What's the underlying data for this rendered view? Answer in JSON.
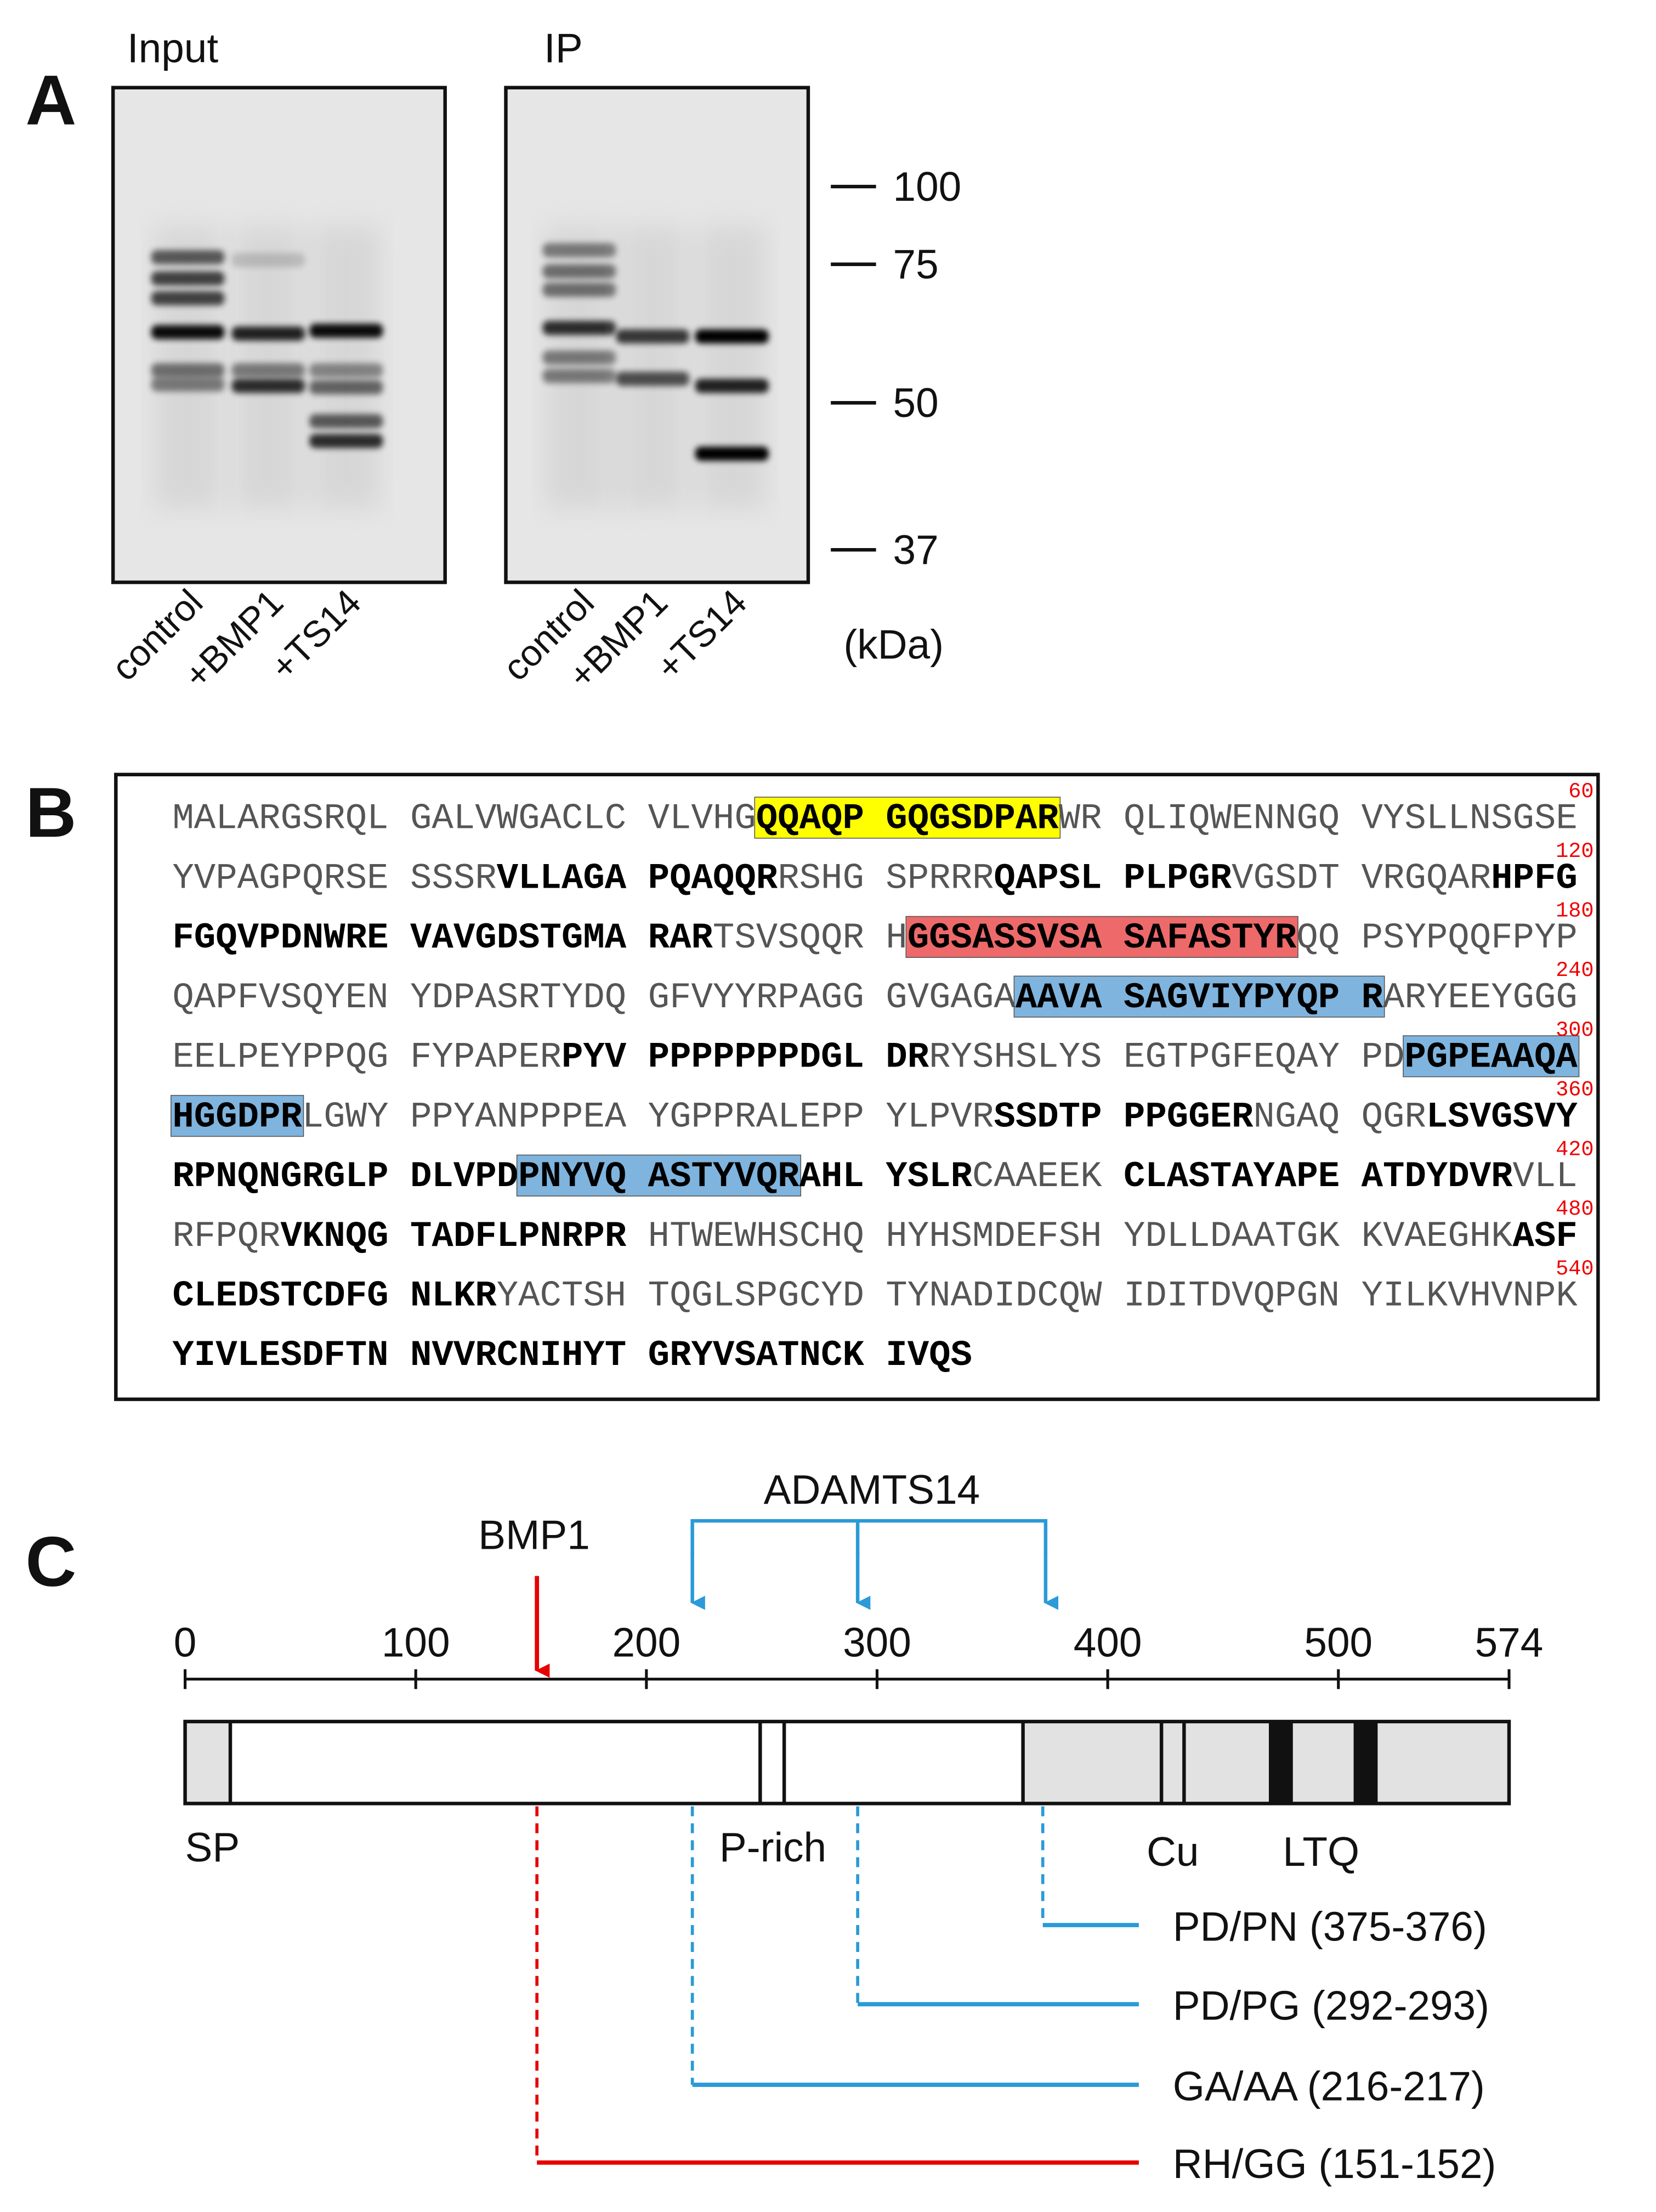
{
  "panel_a": {
    "label": "A",
    "titles": [
      "Input",
      "IP"
    ],
    "lanes": [
      "control",
      "+BMP1",
      "+TS14"
    ],
    "markers": [
      "100",
      "75",
      "50",
      "37"
    ],
    "unit": "(kDa)"
  },
  "panel_b": {
    "label": "B",
    "lines": [
      {
        "number": 60,
        "segments": [
          {
            "text": "MALARGSRQL GALVWGACLC VLVHG",
            "bold": false
          },
          {
            "text": "QQAQP GQGSDPAR",
            "bold": true,
            "highlight": "#ffff00"
          },
          {
            "text": "WR QLIQWENNGQ VYSLLNSGSE",
            "bold": false
          }
        ]
      },
      {
        "number": 120,
        "segments": [
          {
            "text": "YVPAGPQRSE SSSR",
            "bold": false
          },
          {
            "text": "VLLAGA PQAQQR",
            "bold": true
          },
          {
            "text": "RSHG SPRRR",
            "bold": false
          },
          {
            "text": "QAPSL PLPGR",
            "bold": true
          },
          {
            "text": "VGSDT VRGQAR",
            "bold": false
          },
          {
            "text": "HPFG",
            "bold": true
          }
        ]
      },
      {
        "number": 180,
        "segments": [
          {
            "text": "FGQVPDNWRE VAVGDSTGMA RAR",
            "bold": true
          },
          {
            "text": "TSVSQQR H",
            "bold": false
          },
          {
            "text": "GGSASSVSA SAFASTYR",
            "bold": true,
            "highlight": "#ee6a6a"
          },
          {
            "text": "QQ PSYPQQFPYP",
            "bold": false
          }
        ]
      },
      {
        "number": 240,
        "segments": [
          {
            "text": "QAPFVSQYEN YDPASRTYDQ GFVYYRPAGG GVGAGA",
            "bold": false
          },
          {
            "text": "AAVA SAGVIYPYQP R",
            "bold": true,
            "highlight": "#7fb4de"
          },
          {
            "text": "ARYEEYGGG",
            "bold": false
          }
        ]
      },
      {
        "number": 300,
        "segments": [
          {
            "text": "EELPEYPPQG FYPAPER",
            "bold": false
          },
          {
            "text": "PYV PPPPPPPDGL DR",
            "bold": true
          },
          {
            "text": "RYSHSLYS EGTPGFEQAY PD",
            "bold": false
          },
          {
            "text": "PGPEAAQA",
            "bold": true,
            "highlight": "#7fb4de"
          }
        ]
      },
      {
        "number": 360,
        "segments": [
          {
            "text": "HGGDPR",
            "bold": true,
            "highlight": "#7fb4de"
          },
          {
            "text": "LGWY PPYANPPPEA YGPPRALEPP YLPVR",
            "bold": false
          },
          {
            "text": "SSDTP PPGGER",
            "bold": true
          },
          {
            "text": "NGAQ QGR",
            "bold": false
          },
          {
            "text": "LSVGSVY",
            "bold": true
          }
        ]
      },
      {
        "number": 420,
        "segments": [
          {
            "text": "RPNQNGRGLP DLVPD",
            "bold": true
          },
          {
            "text": "PNYVQ ASTYVQR",
            "bold": true,
            "highlight": "#7fb4de"
          },
          {
            "text": "AHL YSLR",
            "bold": true
          },
          {
            "text": "CAAEEK ",
            "bold": false
          },
          {
            "text": "CLASTAYAPE ATDYDVR",
            "bold": true
          },
          {
            "text": "VLL",
            "bold": false
          }
        ]
      },
      {
        "number": 480,
        "segments": [
          {
            "text": "RFPQR",
            "bold": false
          },
          {
            "text": "VKNQG TADFLPNRPR",
            "bold": true
          },
          {
            "text": " HTWEWHSCHQ HYHSMDEFSH YDLLDAATGK KVAEGHK",
            "bold": false
          },
          {
            "text": "ASF",
            "bold": true
          }
        ]
      },
      {
        "number": 540,
        "segments": [
          {
            "text": "CLEDSTCDFG NLKR",
            "bold": true
          },
          {
            "text": "YACTSH TQGLSPGCYD TYNADIDCQW IDITDVQPGN YILKVHVNPK",
            "bold": false
          }
        ]
      },
      {
        "segments": [
          {
            "text": "YIVLESDFTN NVVRCNIHYT GRYVSATNCK IVQS",
            "bold": true
          }
        ]
      }
    ]
  },
  "panel_c": {
    "label": "C",
    "axis_ticks": [
      0,
      100,
      200,
      300,
      400,
      500,
      574
    ],
    "proteases": [
      "BMP1",
      "ADAMTS14"
    ],
    "domains": [
      "SP",
      "P-rich",
      "Cu",
      "LTQ"
    ],
    "sites": [
      "PD/PN (375-376)",
      "PD/PG (292-293)",
      "GA/AA (216-217)",
      "RH/GG (151-152)"
    ]
  }
}
